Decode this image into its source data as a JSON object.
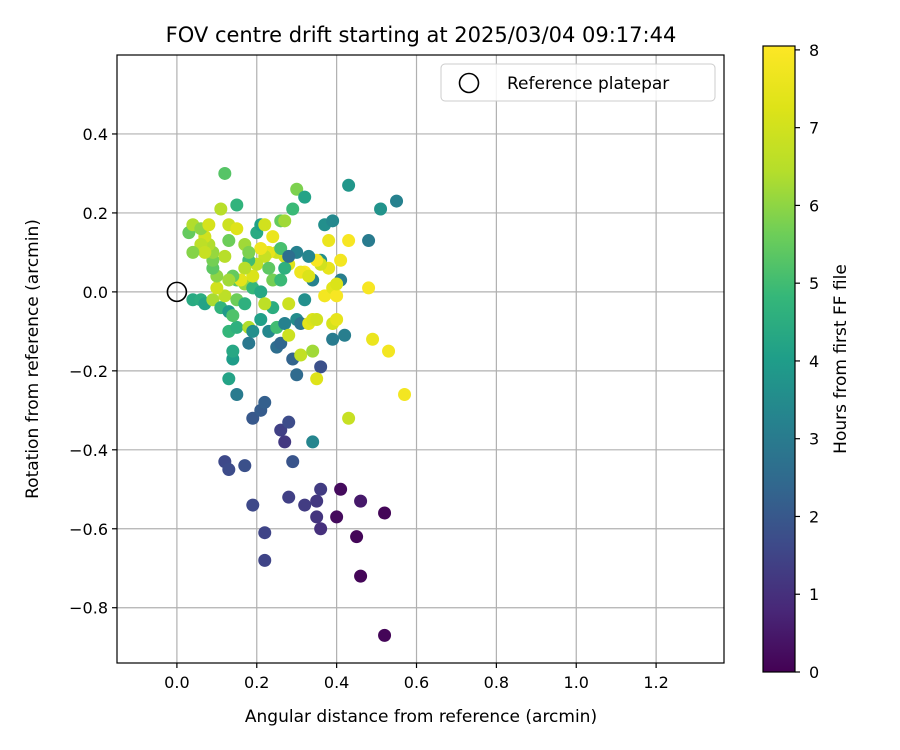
{
  "chart_data": {
    "type": "scatter",
    "title": "FOV centre drift starting at 2025/03/04 09:17:44",
    "xlabel": "Angular distance from reference (arcmin)",
    "ylabel": "Rotation from reference (arcmin)",
    "xlim": [
      -0.15,
      1.37
    ],
    "ylim": [
      -0.94,
      0.6
    ],
    "xticks": [
      0.0,
      0.2,
      0.4,
      0.6,
      0.8,
      1.0,
      1.2
    ],
    "xtick_labels": [
      "0.0",
      "0.2",
      "0.4",
      "0.6",
      "0.8",
      "1.0",
      "1.2"
    ],
    "yticks": [
      0.4,
      0.2,
      0.0,
      -0.2,
      -0.4,
      -0.6,
      -0.8
    ],
    "ytick_labels": [
      "0.4",
      "0.2",
      "0.0",
      "−0.2",
      "−0.4",
      "−0.6",
      "−0.8"
    ],
    "grid": true,
    "colormap": "viridis",
    "colorbar": {
      "label": "Hours from first FF file",
      "range": [
        0,
        8.05
      ],
      "ticks": [
        0,
        1,
        2,
        3,
        4,
        5,
        6,
        7,
        8
      ],
      "tick_labels": [
        "0",
        "1",
        "2",
        "3",
        "4",
        "5",
        "6",
        "7",
        "8"
      ]
    },
    "legend": {
      "position": "top-right",
      "label": "Reference platepar"
    },
    "reference_point": {
      "x": 0.0,
      "y": 0.0
    },
    "points": [
      {
        "x": 0.52,
        "y": -0.87,
        "h": 0.1
      },
      {
        "x": 0.46,
        "y": -0.72,
        "h": 0.1
      },
      {
        "x": 0.45,
        "y": -0.62,
        "h": 0.1
      },
      {
        "x": 0.52,
        "y": -0.56,
        "h": 0.1
      },
      {
        "x": 0.4,
        "y": -0.57,
        "h": 0.2
      },
      {
        "x": 0.41,
        "y": -0.5,
        "h": 0.2
      },
      {
        "x": 0.46,
        "y": -0.53,
        "h": 0.5
      },
      {
        "x": 0.36,
        "y": -0.6,
        "h": 1.0
      },
      {
        "x": 0.35,
        "y": -0.57,
        "h": 1.1
      },
      {
        "x": 0.35,
        "y": -0.53,
        "h": 1.2
      },
      {
        "x": 0.36,
        "y": -0.5,
        "h": 1.3
      },
      {
        "x": 0.32,
        "y": -0.54,
        "h": 1.3
      },
      {
        "x": 0.28,
        "y": -0.52,
        "h": 1.4
      },
      {
        "x": 0.22,
        "y": -0.68,
        "h": 1.5
      },
      {
        "x": 0.22,
        "y": -0.61,
        "h": 1.5
      },
      {
        "x": 0.19,
        "y": -0.54,
        "h": 1.6
      },
      {
        "x": 0.12,
        "y": -0.43,
        "h": 1.6
      },
      {
        "x": 0.13,
        "y": -0.45,
        "h": 1.7
      },
      {
        "x": 0.17,
        "y": -0.44,
        "h": 1.8
      },
      {
        "x": 0.27,
        "y": -0.38,
        "h": 1.2
      },
      {
        "x": 0.26,
        "y": -0.35,
        "h": 1.4
      },
      {
        "x": 0.28,
        "y": -0.33,
        "h": 1.7
      },
      {
        "x": 0.29,
        "y": -0.43,
        "h": 1.9
      },
      {
        "x": 0.19,
        "y": -0.32,
        "h": 2.0
      },
      {
        "x": 0.21,
        "y": -0.3,
        "h": 2.1
      },
      {
        "x": 0.22,
        "y": -0.28,
        "h": 2.2
      },
      {
        "x": 0.15,
        "y": -0.26,
        "h": 3.0
      },
      {
        "x": 0.13,
        "y": -0.22,
        "h": 4.2
      },
      {
        "x": 0.34,
        "y": -0.38,
        "h": 3.3
      },
      {
        "x": 0.36,
        "y": -0.19,
        "h": 1.8
      },
      {
        "x": 0.3,
        "y": -0.21,
        "h": 2.5
      },
      {
        "x": 0.29,
        "y": -0.17,
        "h": 2.3
      },
      {
        "x": 0.25,
        "y": -0.14,
        "h": 2.6
      },
      {
        "x": 0.26,
        "y": -0.13,
        "h": 2.4
      },
      {
        "x": 0.18,
        "y": -0.13,
        "h": 2.9
      },
      {
        "x": 0.14,
        "y": -0.17,
        "h": 4.0
      },
      {
        "x": 0.14,
        "y": -0.15,
        "h": 4.3
      },
      {
        "x": 0.13,
        "y": -0.1,
        "h": 4.8
      },
      {
        "x": 0.15,
        "y": -0.09,
        "h": 4.6
      },
      {
        "x": 0.18,
        "y": -0.09,
        "h": 6.4
      },
      {
        "x": 0.19,
        "y": -0.1,
        "h": 3.6
      },
      {
        "x": 0.21,
        "y": -0.07,
        "h": 4.1
      },
      {
        "x": 0.23,
        "y": -0.1,
        "h": 3.4
      },
      {
        "x": 0.24,
        "y": -0.04,
        "h": 4.5
      },
      {
        "x": 0.25,
        "y": -0.09,
        "h": 5.0
      },
      {
        "x": 0.27,
        "y": -0.08,
        "h": 3.2
      },
      {
        "x": 0.3,
        "y": -0.07,
        "h": 3.5
      },
      {
        "x": 0.31,
        "y": -0.08,
        "h": 2.8
      },
      {
        "x": 0.33,
        "y": -0.08,
        "h": 7.4
      },
      {
        "x": 0.34,
        "y": -0.07,
        "h": 7.2
      },
      {
        "x": 0.35,
        "y": -0.07,
        "h": 7.0
      },
      {
        "x": 0.31,
        "y": -0.16,
        "h": 6.7
      },
      {
        "x": 0.34,
        "y": -0.15,
        "h": 6.2
      },
      {
        "x": 0.35,
        "y": -0.22,
        "h": 7.3
      },
      {
        "x": 0.43,
        "y": -0.32,
        "h": 6.8
      },
      {
        "x": 0.57,
        "y": -0.26,
        "h": 7.8
      },
      {
        "x": 0.53,
        "y": -0.15,
        "h": 7.8
      },
      {
        "x": 0.49,
        "y": -0.12,
        "h": 7.6
      },
      {
        "x": 0.42,
        "y": -0.11,
        "h": 3.1
      },
      {
        "x": 0.39,
        "y": -0.12,
        "h": 3.0
      },
      {
        "x": 0.39,
        "y": -0.08,
        "h": 7.1
      },
      {
        "x": 0.4,
        "y": -0.07,
        "h": 7.5
      },
      {
        "x": 0.28,
        "y": -0.11,
        "h": 6.9
      },
      {
        "x": 0.04,
        "y": -0.02,
        "h": 4.4
      },
      {
        "x": 0.06,
        "y": -0.02,
        "h": 4.5
      },
      {
        "x": 0.07,
        "y": -0.03,
        "h": 4.2
      },
      {
        "x": 0.09,
        "y": -0.02,
        "h": 6.3
      },
      {
        "x": 0.11,
        "y": -0.04,
        "h": 4.7
      },
      {
        "x": 0.12,
        "y": -0.01,
        "h": 6.6
      },
      {
        "x": 0.13,
        "y": -0.05,
        "h": 3.9
      },
      {
        "x": 0.15,
        "y": -0.02,
        "h": 5.6
      },
      {
        "x": 0.17,
        "y": -0.03,
        "h": 4.6
      },
      {
        "x": 0.14,
        "y": -0.06,
        "h": 5.2
      },
      {
        "x": 0.15,
        "y": 0.03,
        "h": 5.4
      },
      {
        "x": 0.17,
        "y": 0.02,
        "h": 6.1
      },
      {
        "x": 0.19,
        "y": 0.01,
        "h": 4.8
      },
      {
        "x": 0.21,
        "y": 0.0,
        "h": 4.3
      },
      {
        "x": 0.22,
        "y": -0.03,
        "h": 6.6
      },
      {
        "x": 0.24,
        "y": 0.03,
        "h": 5.7
      },
      {
        "x": 0.26,
        "y": 0.03,
        "h": 4.9
      },
      {
        "x": 0.28,
        "y": -0.03,
        "h": 6.9
      },
      {
        "x": 0.32,
        "y": -0.02,
        "h": 3.6
      },
      {
        "x": 0.34,
        "y": 0.03,
        "h": 3.2
      },
      {
        "x": 0.36,
        "y": 0.08,
        "h": 3.6
      },
      {
        "x": 0.38,
        "y": 0.06,
        "h": 7.5
      },
      {
        "x": 0.37,
        "y": -0.01,
        "h": 7.8
      },
      {
        "x": 0.39,
        "y": 0.01,
        "h": 7.4
      },
      {
        "x": 0.4,
        "y": -0.01,
        "h": 7.9
      },
      {
        "x": 0.41,
        "y": 0.03,
        "h": 3.1
      },
      {
        "x": 0.41,
        "y": 0.08,
        "h": 7.8
      },
      {
        "x": 0.48,
        "y": 0.01,
        "h": 7.9
      },
      {
        "x": 0.43,
        "y": 0.13,
        "h": 7.9
      },
      {
        "x": 0.48,
        "y": 0.13,
        "h": 3.0
      },
      {
        "x": 0.38,
        "y": 0.13,
        "h": 7.6
      },
      {
        "x": 0.36,
        "y": 0.07,
        "h": 7.0
      },
      {
        "x": 0.35,
        "y": 0.08,
        "h": 7.9
      },
      {
        "x": 0.32,
        "y": 0.05,
        "h": 8.0
      },
      {
        "x": 0.31,
        "y": 0.05,
        "h": 7.7
      },
      {
        "x": 0.33,
        "y": 0.04,
        "h": 7.2
      },
      {
        "x": 0.3,
        "y": 0.1,
        "h": 3.2
      },
      {
        "x": 0.28,
        "y": 0.07,
        "h": 7.3
      },
      {
        "x": 0.27,
        "y": 0.09,
        "h": 7.0
      },
      {
        "x": 0.25,
        "y": 0.1,
        "h": 6.9
      },
      {
        "x": 0.23,
        "y": 0.1,
        "h": 7.5
      },
      {
        "x": 0.22,
        "y": 0.09,
        "h": 6.8
      },
      {
        "x": 0.21,
        "y": 0.11,
        "h": 7.7
      },
      {
        "x": 0.2,
        "y": 0.07,
        "h": 6.7
      },
      {
        "x": 0.18,
        "y": 0.08,
        "h": 5.0
      },
      {
        "x": 0.19,
        "y": 0.04,
        "h": 7.2
      },
      {
        "x": 0.17,
        "y": 0.06,
        "h": 6.5
      },
      {
        "x": 0.16,
        "y": 0.03,
        "h": 7.4
      },
      {
        "x": 0.14,
        "y": 0.04,
        "h": 5.5
      },
      {
        "x": 0.13,
        "y": 0.03,
        "h": 6.2
      },
      {
        "x": 0.12,
        "y": 0.09,
        "h": 6.5
      },
      {
        "x": 0.1,
        "y": 0.01,
        "h": 7.0
      },
      {
        "x": 0.1,
        "y": 0.04,
        "h": 6.0
      },
      {
        "x": 0.09,
        "y": 0.06,
        "h": 5.4
      },
      {
        "x": 0.09,
        "y": 0.08,
        "h": 5.7
      },
      {
        "x": 0.09,
        "y": 0.1,
        "h": 6.1
      },
      {
        "x": 0.08,
        "y": 0.12,
        "h": 6.4
      },
      {
        "x": 0.07,
        "y": 0.14,
        "h": 7.0
      },
      {
        "x": 0.06,
        "y": 0.12,
        "h": 6.6
      },
      {
        "x": 0.07,
        "y": 0.1,
        "h": 6.8
      },
      {
        "x": 0.04,
        "y": 0.1,
        "h": 5.9
      },
      {
        "x": 0.03,
        "y": 0.15,
        "h": 5.5
      },
      {
        "x": 0.04,
        "y": 0.17,
        "h": 6.4
      },
      {
        "x": 0.06,
        "y": 0.16,
        "h": 6.0
      },
      {
        "x": 0.08,
        "y": 0.17,
        "h": 7.1
      },
      {
        "x": 0.11,
        "y": 0.21,
        "h": 6.5
      },
      {
        "x": 0.13,
        "y": 0.17,
        "h": 6.9
      },
      {
        "x": 0.15,
        "y": 0.16,
        "h": 7.3
      },
      {
        "x": 0.13,
        "y": 0.13,
        "h": 5.6
      },
      {
        "x": 0.15,
        "y": 0.22,
        "h": 4.7
      },
      {
        "x": 0.12,
        "y": 0.3,
        "h": 5.3
      },
      {
        "x": 0.17,
        "y": 0.12,
        "h": 6.2
      },
      {
        "x": 0.18,
        "y": 0.1,
        "h": 5.8
      },
      {
        "x": 0.2,
        "y": 0.15,
        "h": 4.4
      },
      {
        "x": 0.21,
        "y": 0.17,
        "h": 4.1
      },
      {
        "x": 0.22,
        "y": 0.17,
        "h": 7.0
      },
      {
        "x": 0.24,
        "y": 0.14,
        "h": 7.6
      },
      {
        "x": 0.26,
        "y": 0.18,
        "h": 5.5
      },
      {
        "x": 0.27,
        "y": 0.18,
        "h": 6.2
      },
      {
        "x": 0.29,
        "y": 0.21,
        "h": 4.9
      },
      {
        "x": 0.3,
        "y": 0.26,
        "h": 5.8
      },
      {
        "x": 0.32,
        "y": 0.24,
        "h": 4.2
      },
      {
        "x": 0.33,
        "y": 0.09,
        "h": 3.3
      },
      {
        "x": 0.37,
        "y": 0.17,
        "h": 3.6
      },
      {
        "x": 0.39,
        "y": 0.18,
        "h": 3.4
      },
      {
        "x": 0.43,
        "y": 0.27,
        "h": 3.8
      },
      {
        "x": 0.51,
        "y": 0.21,
        "h": 3.7
      },
      {
        "x": 0.55,
        "y": 0.23,
        "h": 3.2
      },
      {
        "x": 0.4,
        "y": 0.02,
        "h": 7.2
      },
      {
        "x": 0.27,
        "y": 0.06,
        "h": 4.6
      },
      {
        "x": 0.26,
        "y": 0.11,
        "h": 5.1
      },
      {
        "x": 0.28,
        "y": 0.09,
        "h": 2.6
      },
      {
        "x": 0.23,
        "y": 0.06,
        "h": 5.4
      }
    ]
  }
}
